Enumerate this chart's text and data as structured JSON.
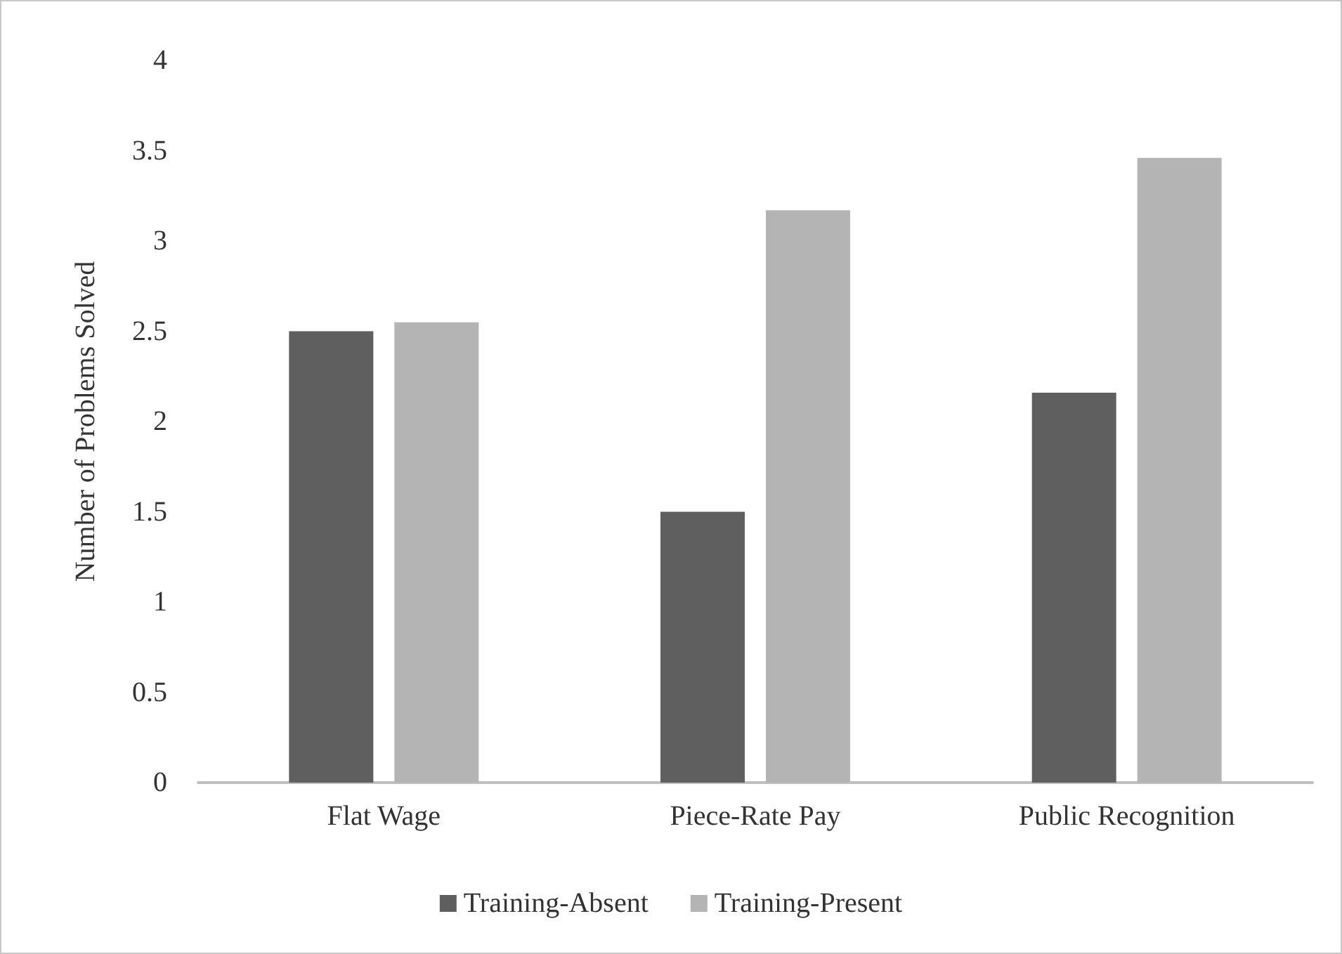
{
  "chart_data": {
    "type": "bar",
    "ylabel": "Number of Problems Solved",
    "categories": [
      "Flat Wage",
      "Piece-Rate Pay",
      "Public Recognition"
    ],
    "series": [
      {
        "name": "Training-Absent",
        "color": "#5f5f5f",
        "values": [
          2.5,
          1.5,
          2.16
        ]
      },
      {
        "name": "Training-Present",
        "color": "#b4b4b4",
        "values": [
          2.55,
          3.17,
          3.46
        ]
      }
    ],
    "ylim": [
      0,
      4
    ],
    "yticks": [
      0,
      0.5,
      1,
      1.5,
      2,
      2.5,
      3,
      3.5,
      4
    ],
    "grid": false,
    "legend": "bottom"
  }
}
